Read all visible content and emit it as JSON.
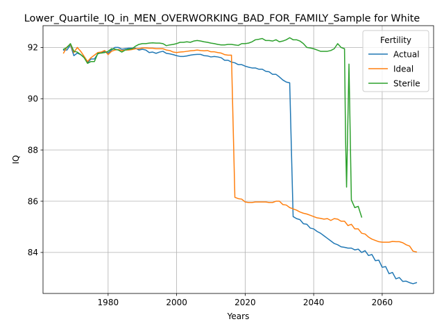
{
  "chart_data": {
    "type": "line",
    "title": "Lower_Quartile_IQ_in_MEN_OVERWORKING_BAD_FOR_FAMILY_Sample for White",
    "xlabel": "Years",
    "ylabel": "IQ",
    "xlim": [
      1961,
      2075
    ],
    "ylim": [
      82.4,
      92.85
    ],
    "xticks": [
      1980,
      2000,
      2020,
      2040,
      2060
    ],
    "yticks": [
      84,
      86,
      88,
      90,
      92
    ],
    "grid": true,
    "legend": {
      "title": "Fertility",
      "placement": "top-right"
    },
    "series": [
      {
        "name": "Actual",
        "color": "#1f77b4",
        "points": [
          [
            1967,
            91.9
          ],
          [
            1968,
            91.9
          ],
          [
            1969,
            92.1
          ],
          [
            1970,
            91.68
          ],
          [
            1971,
            91.78
          ],
          [
            1972,
            91.72
          ],
          [
            1973,
            91.62
          ],
          [
            1974,
            91.4
          ],
          [
            1975,
            91.55
          ],
          [
            1976,
            91.55
          ],
          [
            1977,
            91.75
          ],
          [
            1978,
            91.8
          ],
          [
            1979,
            91.85
          ],
          [
            1980,
            91.78
          ],
          [
            1981,
            91.9
          ],
          [
            1982,
            92.0
          ],
          [
            1983,
            92.0
          ],
          [
            1984,
            91.93
          ],
          [
            1985,
            91.95
          ],
          [
            1986,
            91.97
          ],
          [
            1987,
            91.97
          ],
          [
            1988,
            91.97
          ],
          [
            1989,
            91.9
          ],
          [
            1990,
            91.93
          ],
          [
            1991,
            91.9
          ],
          [
            1992,
            91.8
          ],
          [
            1993,
            91.82
          ],
          [
            1994,
            91.77
          ],
          [
            1995,
            91.82
          ],
          [
            1996,
            91.85
          ],
          [
            1997,
            91.77
          ],
          [
            1998,
            91.75
          ],
          [
            1999,
            91.72
          ],
          [
            2000,
            91.68
          ],
          [
            2001,
            91.65
          ],
          [
            2002,
            91.65
          ],
          [
            2003,
            91.67
          ],
          [
            2004,
            91.7
          ],
          [
            2005,
            91.72
          ],
          [
            2006,
            91.73
          ],
          [
            2007,
            91.73
          ],
          [
            2008,
            91.68
          ],
          [
            2009,
            91.67
          ],
          [
            2010,
            91.63
          ],
          [
            2011,
            91.65
          ],
          [
            2012,
            91.63
          ],
          [
            2013,
            91.6
          ],
          [
            2014,
            91.5
          ],
          [
            2015,
            91.5
          ],
          [
            2016,
            91.43
          ],
          [
            2017,
            91.4
          ],
          [
            2018,
            91.33
          ],
          [
            2019,
            91.33
          ],
          [
            2020,
            91.27
          ],
          [
            2021,
            91.23
          ],
          [
            2022,
            91.2
          ],
          [
            2023,
            91.2
          ],
          [
            2024,
            91.15
          ],
          [
            2025,
            91.15
          ],
          [
            2026,
            91.07
          ],
          [
            2027,
            91.05
          ],
          [
            2028,
            90.95
          ],
          [
            2029,
            90.95
          ],
          [
            2030,
            90.85
          ],
          [
            2031,
            90.73
          ],
          [
            2032,
            90.65
          ],
          [
            2033,
            90.62
          ],
          [
            2034,
            85.4
          ],
          [
            2035,
            85.32
          ],
          [
            2036,
            85.28
          ],
          [
            2037,
            85.12
          ],
          [
            2038,
            85.1
          ],
          [
            2039,
            84.95
          ],
          [
            2040,
            84.92
          ],
          [
            2041,
            84.82
          ],
          [
            2042,
            84.75
          ],
          [
            2043,
            84.65
          ],
          [
            2044,
            84.55
          ],
          [
            2045,
            84.45
          ],
          [
            2046,
            84.35
          ],
          [
            2047,
            84.3
          ],
          [
            2048,
            84.22
          ],
          [
            2049,
            84.2
          ],
          [
            2050,
            84.17
          ],
          [
            2051,
            84.17
          ],
          [
            2052,
            84.1
          ],
          [
            2053,
            84.13
          ],
          [
            2054,
            84.0
          ],
          [
            2055,
            84.07
          ],
          [
            2056,
            83.88
          ],
          [
            2057,
            83.92
          ],
          [
            2058,
            83.68
          ],
          [
            2059,
            83.7
          ],
          [
            2060,
            83.42
          ],
          [
            2061,
            83.45
          ],
          [
            2062,
            83.17
          ],
          [
            2063,
            83.22
          ],
          [
            2064,
            82.97
          ],
          [
            2065,
            83.02
          ],
          [
            2066,
            82.87
          ],
          [
            2067,
            82.88
          ],
          [
            2068,
            82.82
          ],
          [
            2069,
            82.78
          ],
          [
            2070,
            82.82
          ]
        ]
      },
      {
        "name": "Ideal",
        "color": "#ff7f0e",
        "points": [
          [
            1967,
            91.78
          ],
          [
            1968,
            92.02
          ],
          [
            1969,
            92.12
          ],
          [
            1970,
            91.8
          ],
          [
            1971,
            92.0
          ],
          [
            1972,
            91.85
          ],
          [
            1973,
            91.65
          ],
          [
            1974,
            91.45
          ],
          [
            1975,
            91.6
          ],
          [
            1976,
            91.7
          ],
          [
            1977,
            91.8
          ],
          [
            1978,
            91.82
          ],
          [
            1979,
            91.88
          ],
          [
            1980,
            91.72
          ],
          [
            1981,
            91.85
          ],
          [
            1982,
            91.9
          ],
          [
            1983,
            91.92
          ],
          [
            1984,
            91.88
          ],
          [
            1985,
            91.9
          ],
          [
            1986,
            91.9
          ],
          [
            1987,
            91.92
          ],
          [
            1988,
            91.95
          ],
          [
            1989,
            91.95
          ],
          [
            1990,
            91.98
          ],
          [
            1991,
            91.98
          ],
          [
            1992,
            91.97
          ],
          [
            1993,
            91.97
          ],
          [
            1994,
            91.95
          ],
          [
            1995,
            91.95
          ],
          [
            1996,
            91.95
          ],
          [
            1997,
            91.9
          ],
          [
            1998,
            91.88
          ],
          [
            1999,
            91.82
          ],
          [
            2000,
            91.8
          ],
          [
            2001,
            91.82
          ],
          [
            2002,
            91.83
          ],
          [
            2003,
            91.85
          ],
          [
            2004,
            91.87
          ],
          [
            2005,
            91.88
          ],
          [
            2006,
            91.9
          ],
          [
            2007,
            91.88
          ],
          [
            2008,
            91.87
          ],
          [
            2009,
            91.88
          ],
          [
            2010,
            91.83
          ],
          [
            2011,
            91.83
          ],
          [
            2012,
            91.8
          ],
          [
            2013,
            91.78
          ],
          [
            2014,
            91.72
          ],
          [
            2015,
            91.7
          ],
          [
            2016,
            91.7
          ],
          [
            2017,
            86.15
          ],
          [
            2018,
            86.1
          ],
          [
            2019,
            86.08
          ],
          [
            2020,
            85.97
          ],
          [
            2021,
            85.95
          ],
          [
            2022,
            85.95
          ],
          [
            2023,
            85.97
          ],
          [
            2024,
            85.97
          ],
          [
            2025,
            85.97
          ],
          [
            2026,
            85.97
          ],
          [
            2027,
            85.95
          ],
          [
            2028,
            85.95
          ],
          [
            2029,
            86.0
          ],
          [
            2030,
            86.0
          ],
          [
            2031,
            85.87
          ],
          [
            2032,
            85.85
          ],
          [
            2033,
            85.75
          ],
          [
            2034,
            85.7
          ],
          [
            2035,
            85.65
          ],
          [
            2036,
            85.58
          ],
          [
            2037,
            85.53
          ],
          [
            2038,
            85.5
          ],
          [
            2039,
            85.45
          ],
          [
            2040,
            85.4
          ],
          [
            2041,
            85.35
          ],
          [
            2042,
            85.33
          ],
          [
            2043,
            85.3
          ],
          [
            2044,
            85.32
          ],
          [
            2045,
            85.25
          ],
          [
            2046,
            85.32
          ],
          [
            2047,
            85.3
          ],
          [
            2048,
            85.22
          ],
          [
            2049,
            85.22
          ],
          [
            2050,
            85.05
          ],
          [
            2051,
            85.1
          ],
          [
            2052,
            84.92
          ],
          [
            2053,
            84.92
          ],
          [
            2054,
            84.75
          ],
          [
            2055,
            84.72
          ],
          [
            2056,
            84.6
          ],
          [
            2057,
            84.52
          ],
          [
            2058,
            84.47
          ],
          [
            2059,
            84.42
          ],
          [
            2060,
            84.4
          ],
          [
            2061,
            84.4
          ],
          [
            2062,
            84.4
          ],
          [
            2063,
            84.43
          ],
          [
            2064,
            84.42
          ],
          [
            2065,
            84.42
          ],
          [
            2066,
            84.38
          ],
          [
            2067,
            84.3
          ],
          [
            2068,
            84.25
          ],
          [
            2069,
            84.05
          ],
          [
            2070,
            84.02
          ]
        ]
      },
      {
        "name": "Sterile",
        "color": "#2ca02c",
        "points": [
          [
            1967,
            91.93
          ],
          [
            1968,
            92.0
          ],
          [
            1969,
            92.15
          ],
          [
            1970,
            91.85
          ],
          [
            1971,
            91.82
          ],
          [
            1972,
            91.72
          ],
          [
            1973,
            91.6
          ],
          [
            1974,
            91.38
          ],
          [
            1975,
            91.45
          ],
          [
            1976,
            91.45
          ],
          [
            1977,
            91.77
          ],
          [
            1978,
            91.78
          ],
          [
            1979,
            91.8
          ],
          [
            1980,
            91.85
          ],
          [
            1981,
            91.95
          ],
          [
            1982,
            91.93
          ],
          [
            1983,
            91.9
          ],
          [
            1984,
            91.82
          ],
          [
            1985,
            91.9
          ],
          [
            1986,
            91.93
          ],
          [
            1987,
            91.95
          ],
          [
            1988,
            92.05
          ],
          [
            1989,
            92.12
          ],
          [
            1990,
            92.15
          ],
          [
            1991,
            92.15
          ],
          [
            1992,
            92.17
          ],
          [
            1993,
            92.18
          ],
          [
            1994,
            92.17
          ],
          [
            1995,
            92.17
          ],
          [
            1996,
            92.15
          ],
          [
            1997,
            92.07
          ],
          [
            1998,
            92.1
          ],
          [
            1999,
            92.12
          ],
          [
            2000,
            92.15
          ],
          [
            2001,
            92.2
          ],
          [
            2002,
            92.2
          ],
          [
            2003,
            92.22
          ],
          [
            2004,
            92.2
          ],
          [
            2005,
            92.25
          ],
          [
            2006,
            92.27
          ],
          [
            2007,
            92.25
          ],
          [
            2008,
            92.22
          ],
          [
            2009,
            92.2
          ],
          [
            2010,
            92.17
          ],
          [
            2011,
            92.15
          ],
          [
            2012,
            92.12
          ],
          [
            2013,
            92.1
          ],
          [
            2014,
            92.1
          ],
          [
            2015,
            92.12
          ],
          [
            2016,
            92.12
          ],
          [
            2017,
            92.1
          ],
          [
            2018,
            92.08
          ],
          [
            2019,
            92.15
          ],
          [
            2020,
            92.15
          ],
          [
            2021,
            92.17
          ],
          [
            2022,
            92.22
          ],
          [
            2023,
            92.3
          ],
          [
            2024,
            92.32
          ],
          [
            2025,
            92.35
          ],
          [
            2026,
            92.27
          ],
          [
            2027,
            92.27
          ],
          [
            2028,
            92.25
          ],
          [
            2029,
            92.3
          ],
          [
            2030,
            92.22
          ],
          [
            2031,
            92.25
          ],
          [
            2032,
            92.3
          ],
          [
            2033,
            92.38
          ],
          [
            2034,
            92.3
          ],
          [
            2035,
            92.3
          ],
          [
            2036,
            92.25
          ],
          [
            2037,
            92.15
          ],
          [
            2038,
            92.0
          ],
          [
            2039,
            91.98
          ],
          [
            2040,
            91.95
          ],
          [
            2041,
            91.9
          ],
          [
            2042,
            91.85
          ],
          [
            2043,
            91.85
          ],
          [
            2044,
            91.85
          ],
          [
            2045,
            91.88
          ],
          [
            2046,
            91.95
          ],
          [
            2047,
            92.15
          ],
          [
            2048,
            92.0
          ],
          [
            2049,
            91.95
          ],
          [
            2049.3,
            88.5
          ],
          [
            2049.6,
            86.55
          ],
          [
            2050.3,
            91.35
          ],
          [
            2051,
            86.05
          ],
          [
            2052,
            85.75
          ],
          [
            2053,
            85.8
          ],
          [
            2054,
            85.38
          ]
        ]
      }
    ]
  }
}
